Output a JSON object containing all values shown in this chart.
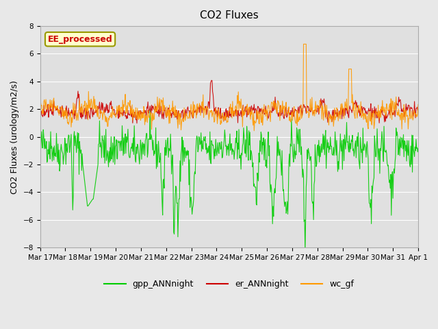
{
  "title": "CO2 Fluxes",
  "ylabel": "CO2 Fluxes (urology/m2/s)",
  "ylim": [
    -8,
    8
  ],
  "yticks": [
    -8,
    -6,
    -4,
    -2,
    0,
    2,
    4,
    6,
    8
  ],
  "background_color": "#e8e8e8",
  "plot_bg_color": "#e0e0e0",
  "gpp_color": "#00cc00",
  "er_color": "#cc0000",
  "wc_color": "#ff9900",
  "annotation_text": "EE_processed",
  "annotation_color": "#cc0000",
  "annotation_bg": "#ffffcc",
  "annotation_border": "#999900",
  "legend_labels": [
    "gpp_ANNnight",
    "er_ANNnight",
    "wc_gf"
  ],
  "x_tick_labels": [
    "Mar 17",
    "Mar 18",
    "Mar 19",
    "Mar 20",
    "Mar 21",
    "Mar 22",
    "Mar 23",
    "Mar 24",
    "Mar 25",
    "Mar 26",
    "Mar 27",
    "Mar 28",
    "Mar 29",
    "Mar 30",
    "Mar 31",
    "Apr 1"
  ],
  "n_days": 15,
  "points_per_day": 48,
  "seed": 42
}
